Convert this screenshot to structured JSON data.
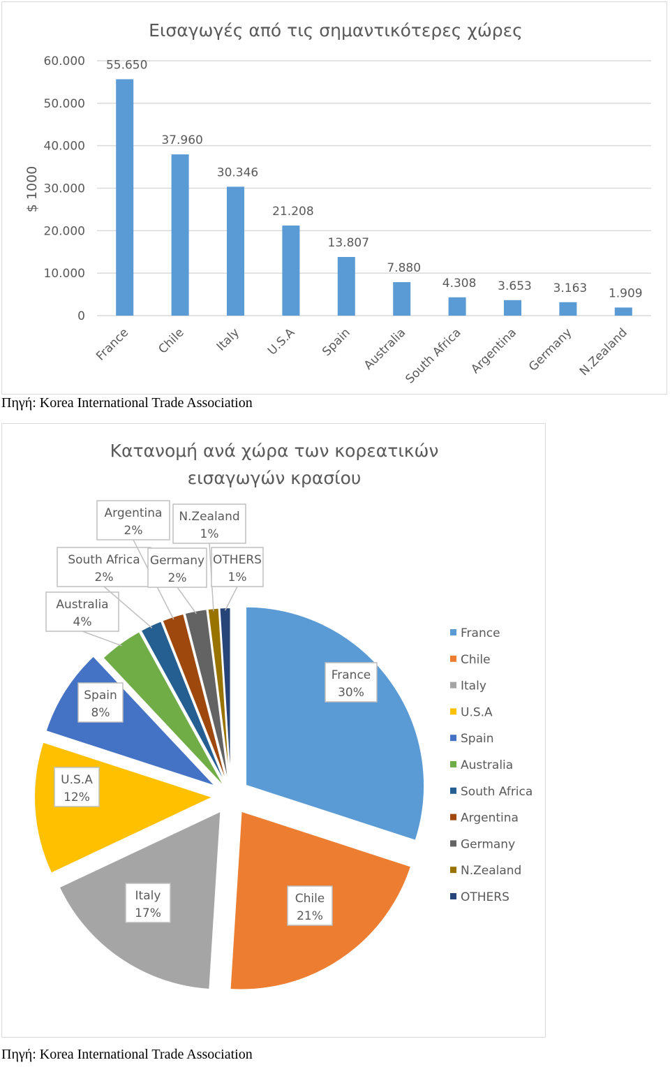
{
  "chart_data": [
    {
      "type": "bar",
      "title": "Εισαγωγές από τις σημαντικότερες χώρες",
      "ylabel": "$ 1000",
      "xlabel": "",
      "ylim": [
        0,
        60000
      ],
      "yticks": [
        0,
        10000,
        20000,
        30000,
        40000,
        50000,
        60000
      ],
      "ytick_labels": [
        "0",
        "10.000",
        "20.000",
        "30.000",
        "40.000",
        "50.000",
        "60.000"
      ],
      "grid": true,
      "color": "#5b9bd5",
      "categories": [
        "France",
        "Chile",
        "Italy",
        "U.S.A",
        "Spain",
        "Australia",
        "South Africa",
        "Argentina",
        "Germany",
        "N.Zealand"
      ],
      "values": [
        55650,
        37960,
        30346,
        21208,
        13807,
        7880,
        4308,
        3653,
        3163,
        1909
      ],
      "value_labels": [
        "55.650",
        "37.960",
        "30.346",
        "21.208",
        "13.807",
        "7.880",
        "4.308",
        "3.653",
        "3.163",
        "1.909"
      ]
    },
    {
      "type": "pie",
      "title_lines": [
        "Κατανομή ανά χώρα των κορεατικών",
        "εισαγωγών κρασίου"
      ],
      "legend": "right",
      "slices": [
        {
          "name": "France",
          "value": 30,
          "label": "30%",
          "color": "#5b9bd5"
        },
        {
          "name": "Chile",
          "value": 21,
          "label": "21%",
          "color": "#ed7d31"
        },
        {
          "name": "Italy",
          "value": 17,
          "label": "17%",
          "color": "#a5a5a5"
        },
        {
          "name": "U.S.A",
          "value": 12,
          "label": "12%",
          "color": "#ffc000"
        },
        {
          "name": "Spain",
          "value": 8,
          "label": "8%",
          "color": "#4472c4"
        },
        {
          "name": "Australia",
          "value": 4,
          "label": "4%",
          "color": "#70ad47"
        },
        {
          "name": "South Africa",
          "value": 2,
          "label": "2%",
          "color": "#255e91"
        },
        {
          "name": "Argentina",
          "value": 2,
          "label": "2%",
          "color": "#9e480e"
        },
        {
          "name": "Germany",
          "value": 2,
          "label": "2%",
          "color": "#636363"
        },
        {
          "name": "N.Zealand",
          "value": 1,
          "label": "1%",
          "color": "#997300"
        },
        {
          "name": "OTHERS",
          "value": 1,
          "label": "1%",
          "color": "#264478"
        }
      ]
    }
  ],
  "sources": [
    "Πηγή: Korea International Trade Association",
    "Πηγή: Korea International Trade Association"
  ]
}
